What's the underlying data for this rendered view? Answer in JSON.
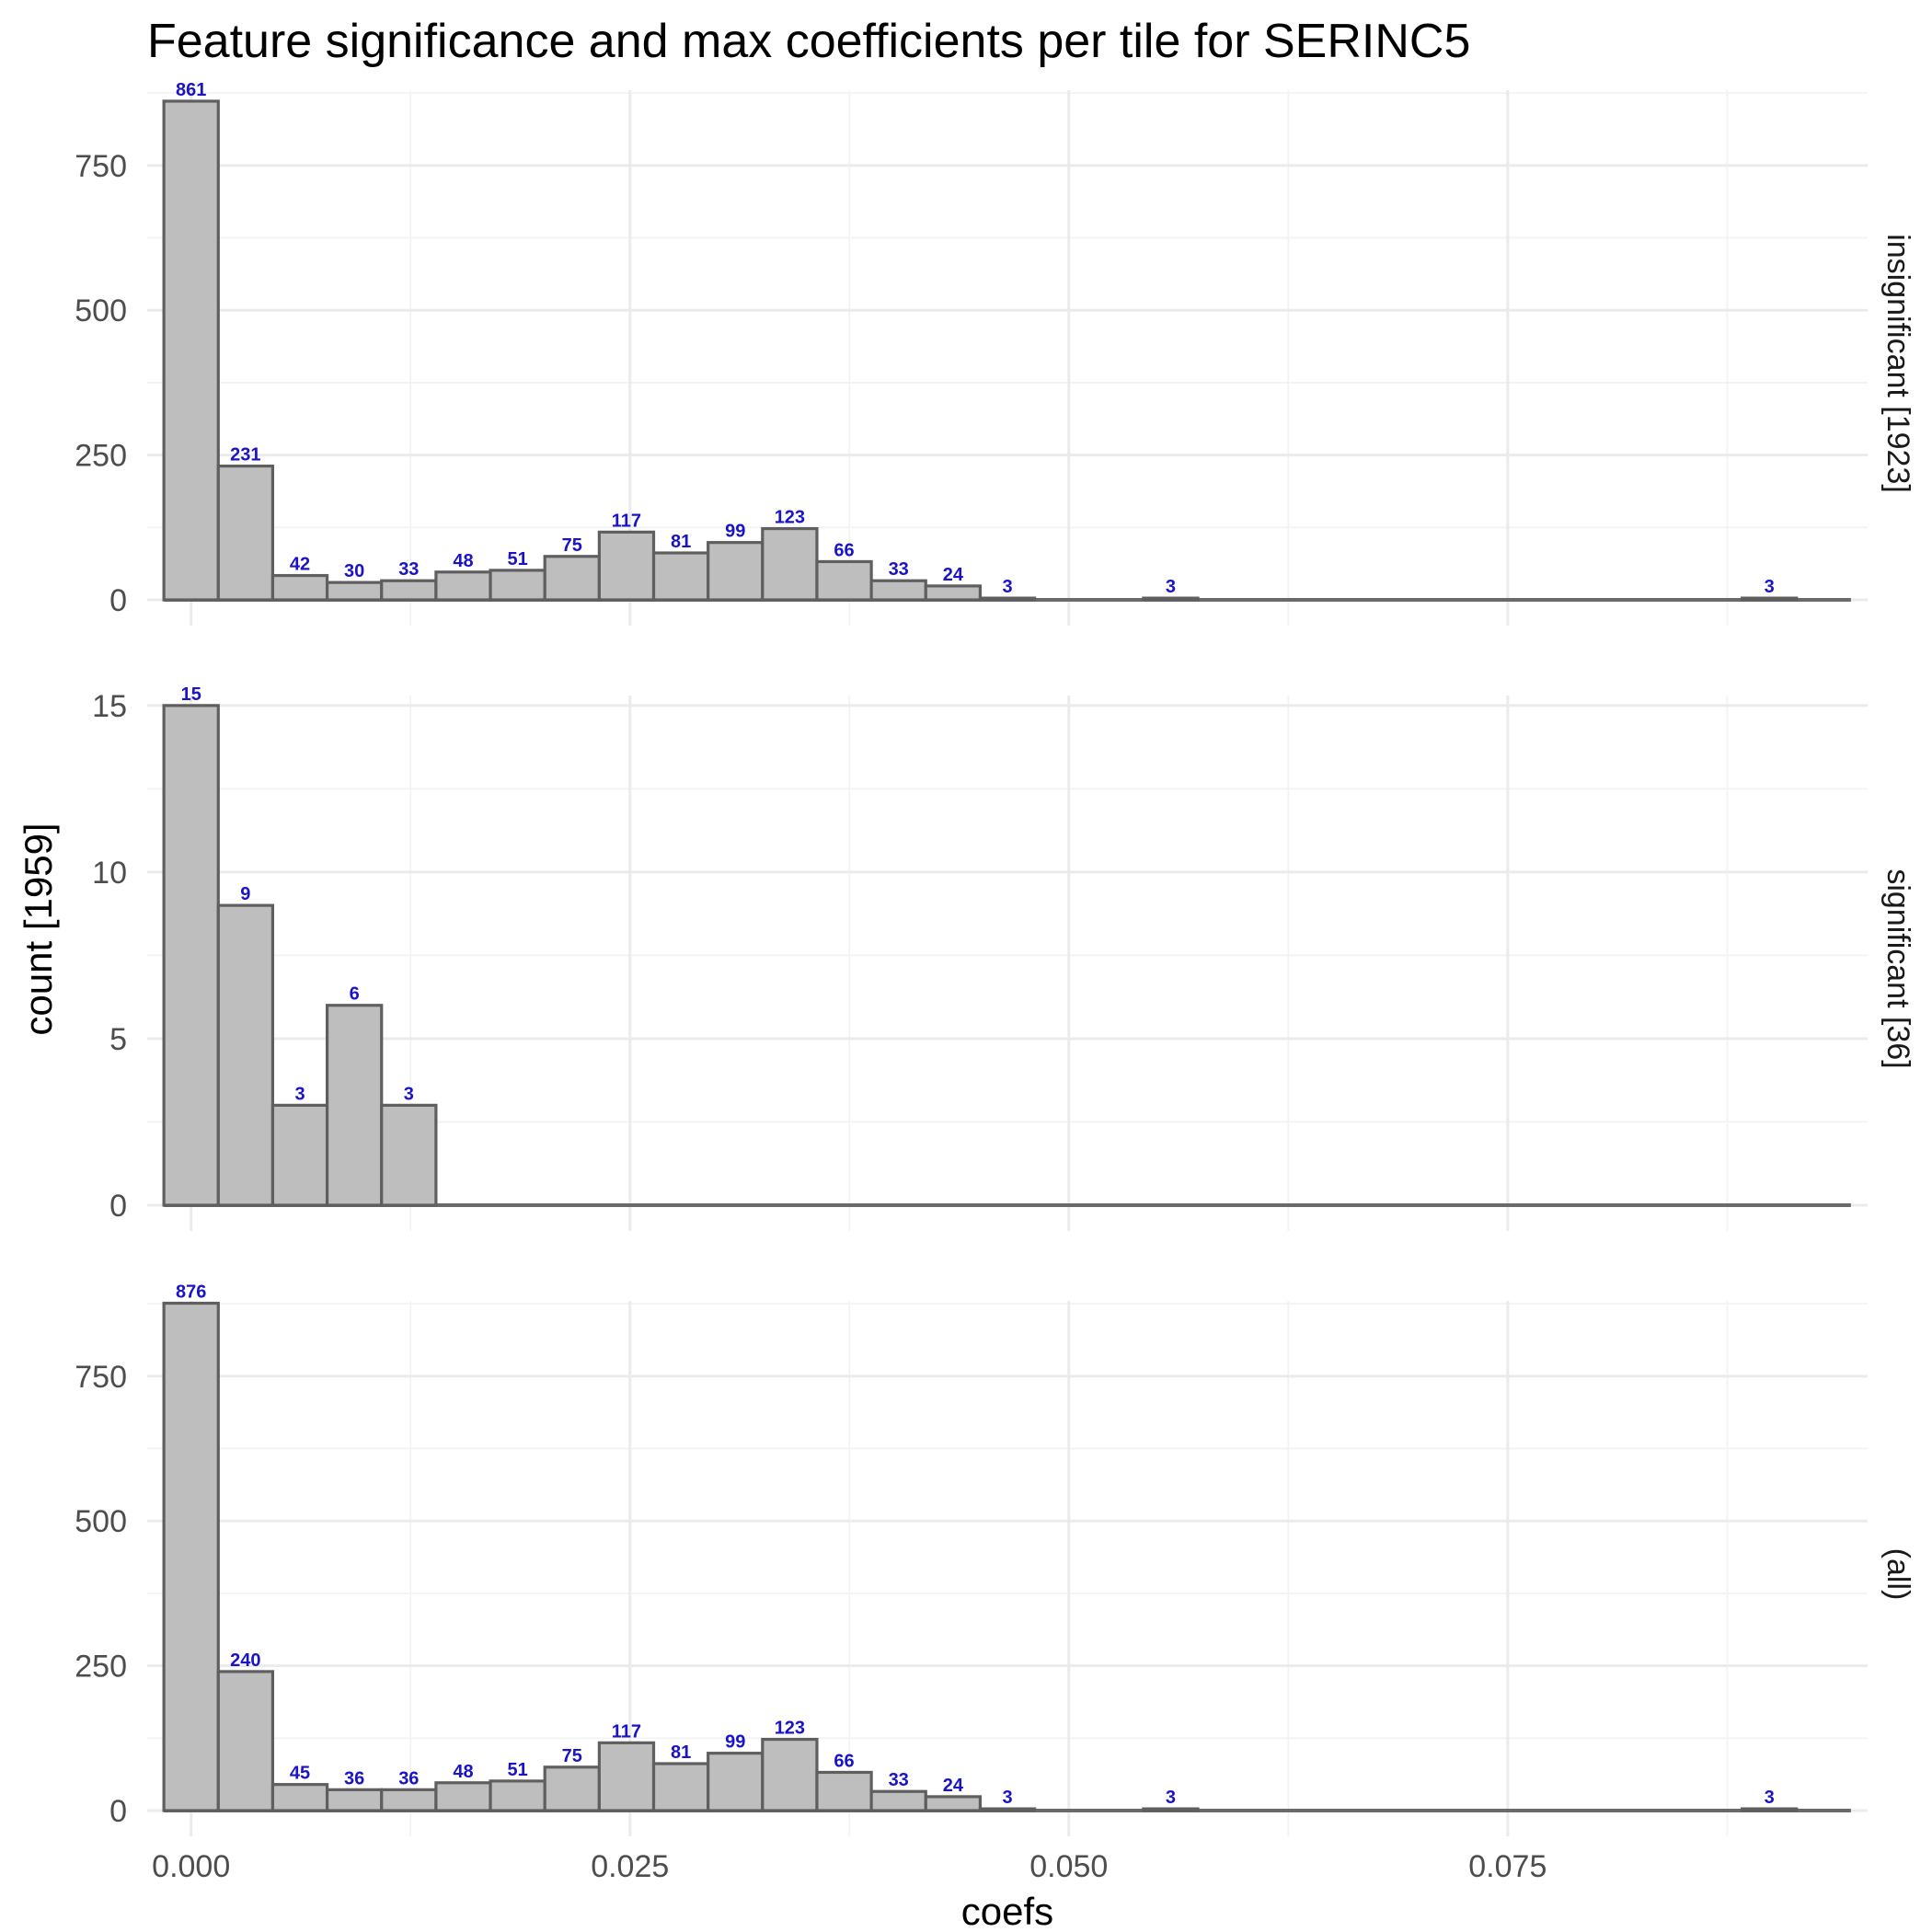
{
  "chart_data": {
    "type": "bar",
    "title": "Feature significance and max coefficients per tile for SERINC5",
    "xlabel": "coefs",
    "ylabel": "count [1959]",
    "xlim": [
      -0.0025,
      0.0955
    ],
    "x_ticks": [
      0.0,
      0.025,
      0.05,
      0.075
    ],
    "x_tick_labels": [
      "0.000",
      "0.025",
      "0.050",
      "0.075"
    ],
    "grid": true,
    "bin_width": 0.0031,
    "bin_start": -0.00155,
    "panels": [
      {
        "label": "insignificant [1923]",
        "ylim": [
          0,
          880
        ],
        "y_ticks": [
          0,
          250,
          500,
          750
        ],
        "y_tick_labels": [
          "0",
          "250",
          "500",
          "750"
        ],
        "bars": [
          {
            "x": 0.0,
            "count": 861,
            "label": "861"
          },
          {
            "x": 0.0031,
            "count": 231,
            "label": "231"
          },
          {
            "x": 0.0062,
            "count": 42,
            "label": "42"
          },
          {
            "x": 0.0093,
            "count": 30,
            "label": "30"
          },
          {
            "x": 0.0124,
            "count": 33,
            "label": "33"
          },
          {
            "x": 0.0155,
            "count": 48,
            "label": "48"
          },
          {
            "x": 0.0186,
            "count": 51,
            "label": "51"
          },
          {
            "x": 0.0217,
            "count": 75,
            "label": "75"
          },
          {
            "x": 0.0248,
            "count": 117,
            "label": "117"
          },
          {
            "x": 0.0279,
            "count": 81,
            "label": "81"
          },
          {
            "x": 0.031,
            "count": 99,
            "label": "99"
          },
          {
            "x": 0.0341,
            "count": 123,
            "label": "123"
          },
          {
            "x": 0.0372,
            "count": 66,
            "label": "66"
          },
          {
            "x": 0.0403,
            "count": 33,
            "label": "33"
          },
          {
            "x": 0.0434,
            "count": 24,
            "label": "24"
          },
          {
            "x": 0.0465,
            "count": 3,
            "label": "3"
          },
          {
            "x": 0.0558,
            "count": 3,
            "label": "3"
          },
          {
            "x": 0.0899,
            "count": 3,
            "label": "3"
          }
        ]
      },
      {
        "label": "significant [36]",
        "ylim": [
          0,
          15.3
        ],
        "y_ticks": [
          0,
          5,
          10,
          15
        ],
        "y_tick_labels": [
          "0",
          "5",
          "10",
          "15"
        ],
        "bars": [
          {
            "x": 0.0,
            "count": 15,
            "label": "15"
          },
          {
            "x": 0.0031,
            "count": 9,
            "label": "9"
          },
          {
            "x": 0.0062,
            "count": 3,
            "label": "3"
          },
          {
            "x": 0.0093,
            "count": 6,
            "label": "6"
          },
          {
            "x": 0.0124,
            "count": 3,
            "label": "3"
          }
        ]
      },
      {
        "label": "(all)",
        "ylim": [
          0,
          880
        ],
        "y_ticks": [
          0,
          250,
          500,
          750
        ],
        "y_tick_labels": [
          "0",
          "250",
          "500",
          "750"
        ],
        "bars": [
          {
            "x": 0.0,
            "count": 876,
            "label": "876"
          },
          {
            "x": 0.0031,
            "count": 240,
            "label": "240"
          },
          {
            "x": 0.0062,
            "count": 45,
            "label": "45"
          },
          {
            "x": 0.0093,
            "count": 36,
            "label": "36"
          },
          {
            "x": 0.0124,
            "count": 36,
            "label": "36"
          },
          {
            "x": 0.0155,
            "count": 48,
            "label": "48"
          },
          {
            "x": 0.0186,
            "count": 51,
            "label": "51"
          },
          {
            "x": 0.0217,
            "count": 75,
            "label": "75"
          },
          {
            "x": 0.0248,
            "count": 117,
            "label": "117"
          },
          {
            "x": 0.0279,
            "count": 81,
            "label": "81"
          },
          {
            "x": 0.031,
            "count": 99,
            "label": "99"
          },
          {
            "x": 0.0341,
            "count": 123,
            "label": "123"
          },
          {
            "x": 0.0372,
            "count": 66,
            "label": "66"
          },
          {
            "x": 0.0403,
            "count": 33,
            "label": "33"
          },
          {
            "x": 0.0434,
            "count": 24,
            "label": "24"
          },
          {
            "x": 0.0465,
            "count": 3,
            "label": "3"
          },
          {
            "x": 0.0558,
            "count": 3,
            "label": "3"
          },
          {
            "x": 0.0899,
            "count": 3,
            "label": "3"
          }
        ]
      }
    ]
  },
  "colors": {
    "bar_fill": "#bebebe",
    "bar_outline": "#5f5f5f",
    "data_label": "#1a13c8",
    "grid": "#ebebeb"
  }
}
